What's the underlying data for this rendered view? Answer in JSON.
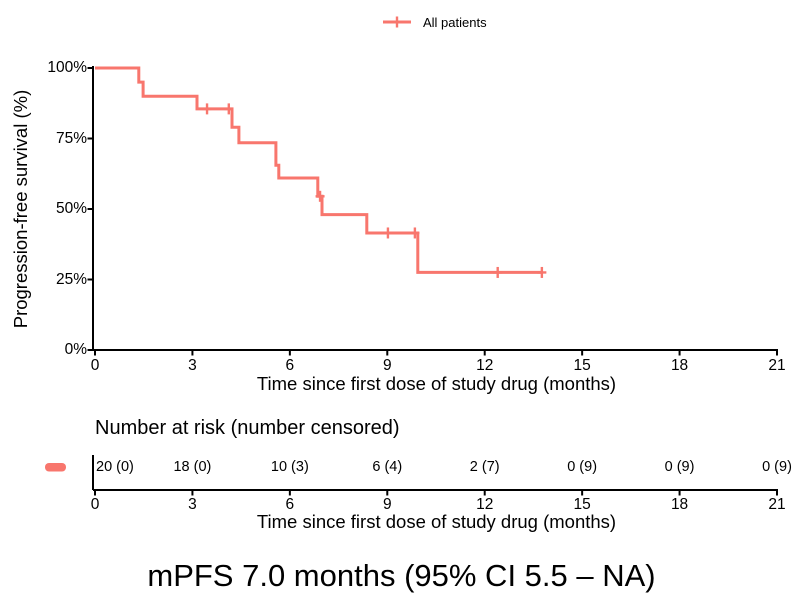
{
  "legend": {
    "label": "All patients",
    "color": "#F8766D"
  },
  "main_plot": {
    "ylabel": "Progression-free survival (%)",
    "xlabel": "Time since first dose of study drug (months)",
    "y_ticks": [
      "0%",
      "25%",
      "50%",
      "75%",
      "100%"
    ],
    "x_ticks": [
      "0",
      "3",
      "6",
      "9",
      "12",
      "15",
      "18",
      "21"
    ]
  },
  "risk_table": {
    "title": "Number at risk (number censored)",
    "xlabel": "Time since first dose of study drug (months)",
    "x_ticks": [
      "0",
      "3",
      "6",
      "9",
      "12",
      "15",
      "18",
      "21"
    ],
    "values": [
      "20 (0)",
      "18 (0)",
      "10 (3)",
      "6 (4)",
      "2 (7)",
      "0 (9)",
      "0 (9)",
      "0 (9)"
    ]
  },
  "caption": "mPFS 7.0 months (95% CI 5.5 – NA)",
  "chart_data": {
    "type": "line",
    "subtype": "kaplan-meier-step",
    "xlabel": "Time since first dose of study drug (months)",
    "ylabel": "Progression-free survival (%)",
    "xlim": [
      0,
      21
    ],
    "ylim": [
      0,
      100
    ],
    "x_tick_values": [
      0,
      3,
      6,
      9,
      12,
      15,
      18,
      21
    ],
    "y_tick_values": [
      0,
      25,
      50,
      75,
      100
    ],
    "grid": false,
    "legend_position": "top",
    "series": [
      {
        "name": "All patients",
        "color": "#F8766D",
        "steps": [
          [
            0,
            100
          ],
          [
            1.35,
            100
          ],
          [
            1.35,
            95
          ],
          [
            1.48,
            95
          ],
          [
            1.48,
            90
          ],
          [
            3.14,
            90
          ],
          [
            3.14,
            85.5
          ],
          [
            4.22,
            85.5
          ],
          [
            4.22,
            79
          ],
          [
            4.43,
            79
          ],
          [
            4.43,
            73.5
          ],
          [
            5.57,
            73.5
          ],
          [
            5.57,
            65.5
          ],
          [
            5.66,
            65.5
          ],
          [
            5.66,
            61
          ],
          [
            6.86,
            61
          ],
          [
            6.86,
            54.5
          ],
          [
            6.99,
            54.5
          ],
          [
            6.99,
            48
          ],
          [
            8.37,
            48
          ],
          [
            8.37,
            41.5
          ],
          [
            9.94,
            41.5
          ],
          [
            9.94,
            27.5
          ],
          [
            13.76,
            27.5
          ]
        ],
        "censor_marks": [
          [
            3.45,
            85.5
          ],
          [
            4.12,
            85.5
          ],
          [
            6.93,
            54.5
          ],
          [
            9.02,
            41.5
          ],
          [
            9.85,
            41.5
          ],
          [
            12.4,
            27.5
          ],
          [
            13.76,
            27.5
          ]
        ]
      }
    ],
    "number_at_risk": {
      "times": [
        0,
        3,
        6,
        9,
        12,
        15,
        18,
        21
      ],
      "at_risk": [
        20,
        18,
        10,
        6,
        2,
        0,
        0,
        0
      ],
      "censored": [
        0,
        0,
        3,
        4,
        7,
        9,
        9,
        9
      ]
    },
    "median": {
      "mpfs_months": 7.0,
      "ci_low": 5.5,
      "ci_high": "NA"
    }
  }
}
